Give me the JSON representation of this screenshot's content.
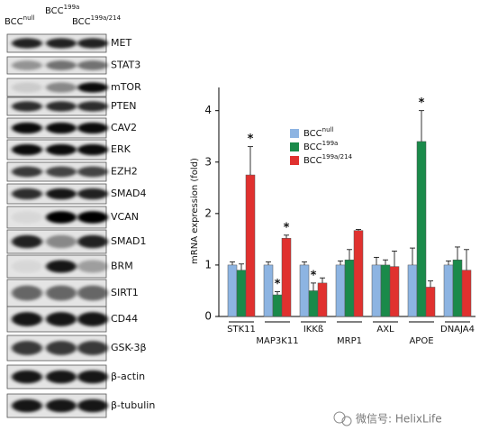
{
  "blot": {
    "lanes": [
      {
        "text": "BCC",
        "sup": "null"
      },
      {
        "text": "BCC",
        "sup": "199a"
      },
      {
        "text": "BCC",
        "sup": "199a/214"
      }
    ],
    "proteins": [
      "MET",
      "STAT3",
      "mTOR",
      "PTEN",
      "CAV2",
      "ERK",
      "EZH2",
      "SMAD4",
      "VCAN",
      "SMAD1",
      "BRM",
      "SIRT1",
      "CD44",
      "GSK-3β",
      "β-actin",
      "β-tubulin"
    ]
  },
  "chart_data": {
    "type": "bar",
    "y_label": "mRNA expression (fold)",
    "categories": [
      "STK11",
      "MAP3K11",
      "IKKß",
      "MRP1",
      "AXL",
      "APOE",
      "DNAJA4"
    ],
    "series": [
      {
        "name": "BCC",
        "name_sup": "null",
        "color": "#8db4e2",
        "values": [
          1.0,
          1.0,
          1.0,
          1.0,
          1.0,
          1.0,
          1.0
        ],
        "errors": [
          0.06,
          0.06,
          0.06,
          0.08,
          0.15,
          0.33,
          0.08
        ],
        "significance": [
          null,
          null,
          null,
          null,
          null,
          null,
          null
        ]
      },
      {
        "name": "BCC",
        "name_sup": "199a",
        "color": "#1a8a4a",
        "values": [
          0.9,
          0.42,
          0.5,
          1.1,
          1.0,
          3.4,
          1.1
        ],
        "errors": [
          0.12,
          0.06,
          0.15,
          0.2,
          0.1,
          0.6,
          0.25
        ],
        "significance": [
          null,
          "*",
          "*",
          null,
          null,
          "*",
          null
        ]
      },
      {
        "name": "BCC",
        "name_sup": "199a/214",
        "color": "#e0312f",
        "values": [
          2.75,
          1.52,
          0.65,
          1.67,
          0.97,
          0.57,
          0.9
        ],
        "errors": [
          0.55,
          0.06,
          0.1,
          0.02,
          0.3,
          0.12,
          0.4
        ],
        "significance": [
          "*",
          "*",
          null,
          null,
          null,
          null,
          null
        ]
      }
    ],
    "ylim": [
      0,
      4.45
    ],
    "yticks": [
      0,
      1,
      2,
      3,
      4
    ]
  },
  "watermark": "微信号: HelixLife"
}
